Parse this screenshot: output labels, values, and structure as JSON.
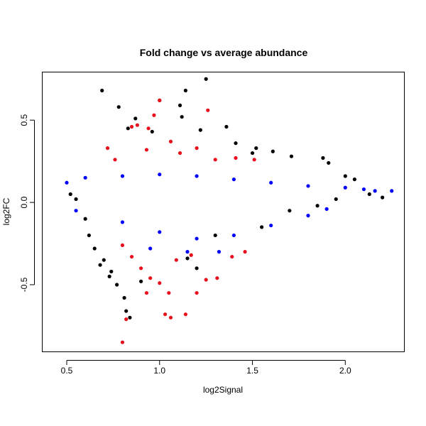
{
  "chart_data": {
    "type": "scatter",
    "title": "Fold change vs average abundance",
    "xlabel": "log2Signal",
    "ylabel": "log2FC",
    "xlim": [
      0.37,
      2.32
    ],
    "ylim": [
      -0.91,
      0.79
    ],
    "x_ticks": [
      0.5,
      1.0,
      1.5,
      2.0
    ],
    "x_tick_labels": [
      "0.5",
      "1.0",
      "1.5",
      "2.0"
    ],
    "y_ticks": [
      -0.5,
      0.0,
      0.5
    ],
    "y_tick_labels": [
      "-0.5",
      "0.0",
      "0.5"
    ],
    "grid": false,
    "legend": "none",
    "series": [
      {
        "color": "#000000",
        "points": [
          [
            0.69,
            0.68
          ],
          [
            1.25,
            0.75
          ],
          [
            1.14,
            0.68
          ],
          [
            0.78,
            0.58
          ],
          [
            1.0,
            0.62
          ],
          [
            1.11,
            0.59
          ],
          [
            0.87,
            0.51
          ],
          [
            1.12,
            0.52
          ],
          [
            0.83,
            0.45
          ],
          [
            1.36,
            0.46
          ],
          [
            1.22,
            0.44
          ],
          [
            0.96,
            0.43
          ],
          [
            1.41,
            0.36
          ],
          [
            1.52,
            0.33
          ],
          [
            1.61,
            0.31
          ],
          [
            1.5,
            0.3
          ],
          [
            1.71,
            0.28
          ],
          [
            1.88,
            0.27
          ],
          [
            1.91,
            0.24
          ],
          [
            2.0,
            0.16
          ],
          [
            2.05,
            0.14
          ],
          [
            2.13,
            0.05
          ],
          [
            2.2,
            0.03
          ],
          [
            0.6,
            -0.1
          ],
          [
            0.62,
            -0.2
          ],
          [
            0.65,
            -0.28
          ],
          [
            0.7,
            -0.35
          ],
          [
            0.74,
            -0.42
          ],
          [
            0.77,
            -0.5
          ],
          [
            0.81,
            -0.58
          ],
          [
            0.82,
            -0.66
          ],
          [
            0.84,
            -0.7
          ],
          [
            0.73,
            -0.45
          ],
          [
            0.68,
            -0.38
          ],
          [
            0.9,
            -0.48
          ],
          [
            1.2,
            -0.4
          ],
          [
            1.15,
            -0.34
          ],
          [
            1.3,
            -0.2
          ],
          [
            1.55,
            -0.15
          ],
          [
            1.7,
            -0.05
          ],
          [
            1.85,
            -0.02
          ],
          [
            1.95,
            0.02
          ],
          [
            0.55,
            0.02
          ],
          [
            0.52,
            0.05
          ]
        ]
      },
      {
        "color": "#0000ff",
        "points": [
          [
            0.5,
            0.12
          ],
          [
            0.6,
            0.15
          ],
          [
            0.8,
            0.16
          ],
          [
            1.0,
            0.17
          ],
          [
            1.2,
            0.16
          ],
          [
            1.4,
            0.14
          ],
          [
            1.6,
            0.12
          ],
          [
            1.8,
            0.1
          ],
          [
            2.0,
            0.09
          ],
          [
            2.1,
            0.08
          ],
          [
            2.16,
            0.07
          ],
          [
            2.25,
            0.07
          ],
          [
            0.55,
            -0.05
          ],
          [
            0.8,
            -0.12
          ],
          [
            1.0,
            -0.18
          ],
          [
            1.2,
            -0.22
          ],
          [
            1.4,
            -0.2
          ],
          [
            1.6,
            -0.14
          ],
          [
            1.8,
            -0.08
          ],
          [
            1.9,
            -0.04
          ],
          [
            1.32,
            -0.3
          ],
          [
            1.15,
            -0.3
          ],
          [
            0.95,
            -0.28
          ]
        ]
      },
      {
        "color": "#e8101c",
        "points": [
          [
            1.0,
            0.62
          ],
          [
            0.97,
            0.53
          ],
          [
            0.88,
            0.47
          ],
          [
            0.94,
            0.45
          ],
          [
            1.26,
            0.56
          ],
          [
            0.85,
            0.46
          ],
          [
            1.06,
            0.37
          ],
          [
            1.2,
            0.33
          ],
          [
            0.93,
            0.32
          ],
          [
            1.3,
            0.26
          ],
          [
            0.72,
            0.33
          ],
          [
            0.76,
            0.26
          ],
          [
            1.41,
            0.27
          ],
          [
            1.51,
            0.26
          ],
          [
            1.11,
            0.3
          ],
          [
            0.8,
            -0.26
          ],
          [
            0.85,
            -0.33
          ],
          [
            0.9,
            -0.4
          ],
          [
            0.95,
            -0.46
          ],
          [
            1.0,
            -0.49
          ],
          [
            1.05,
            -0.55
          ],
          [
            0.93,
            -0.55
          ],
          [
            0.82,
            -0.71
          ],
          [
            0.8,
            -0.85
          ],
          [
            1.03,
            -0.68
          ],
          [
            1.06,
            -0.7
          ],
          [
            1.14,
            -0.68
          ],
          [
            1.2,
            -0.55
          ],
          [
            1.25,
            -0.47
          ],
          [
            1.31,
            -0.46
          ],
          [
            1.39,
            -0.33
          ],
          [
            1.46,
            -0.3
          ],
          [
            1.09,
            -0.35
          ],
          [
            1.17,
            -0.32
          ]
        ]
      }
    ]
  }
}
